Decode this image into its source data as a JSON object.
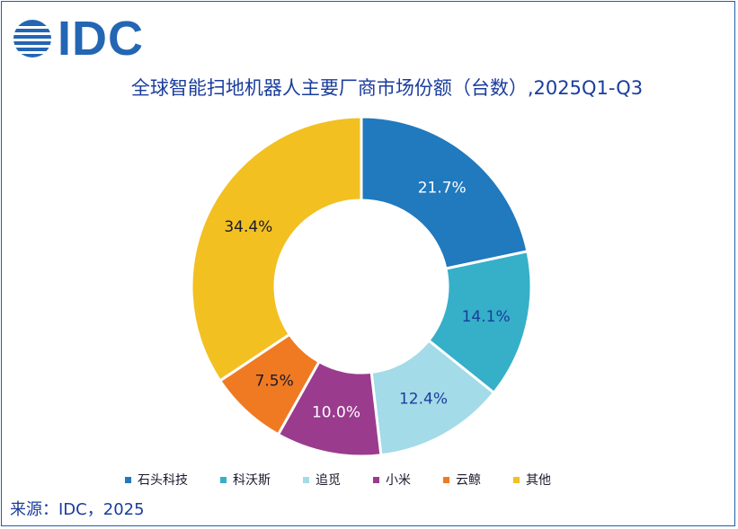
{
  "header": {
    "logo_text": "IDC",
    "title": "全球智能扫地机器人主要厂商市场份额（台数）,2025Q1-Q3"
  },
  "chart_data": {
    "type": "pie",
    "variant": "donut",
    "title": "全球智能扫地机器人主要厂商市场份额（台数）,2025Q1-Q3",
    "categories": [
      "石头科技",
      "科沃斯",
      "追觅",
      "小米",
      "云鲸",
      "其他"
    ],
    "values": [
      21.7,
      14.1,
      12.4,
      10.0,
      7.5,
      34.4
    ],
    "data_labels": [
      "21.7%",
      "14.1%",
      "12.4%",
      "10.0%",
      "7.5%",
      "34.4%"
    ],
    "colors": [
      "#2179be",
      "#36afc9",
      "#a3dbe8",
      "#9a3b8e",
      "#f07a22",
      "#f2c021"
    ],
    "label_colors": [
      "#ffffff",
      "#1a3d9c",
      "#1a3d9c",
      "#ffffff",
      "#1a1a2e",
      "#1a1a2e"
    ],
    "legend_position": "bottom"
  },
  "footer": {
    "source": "来源：IDC，2025"
  }
}
